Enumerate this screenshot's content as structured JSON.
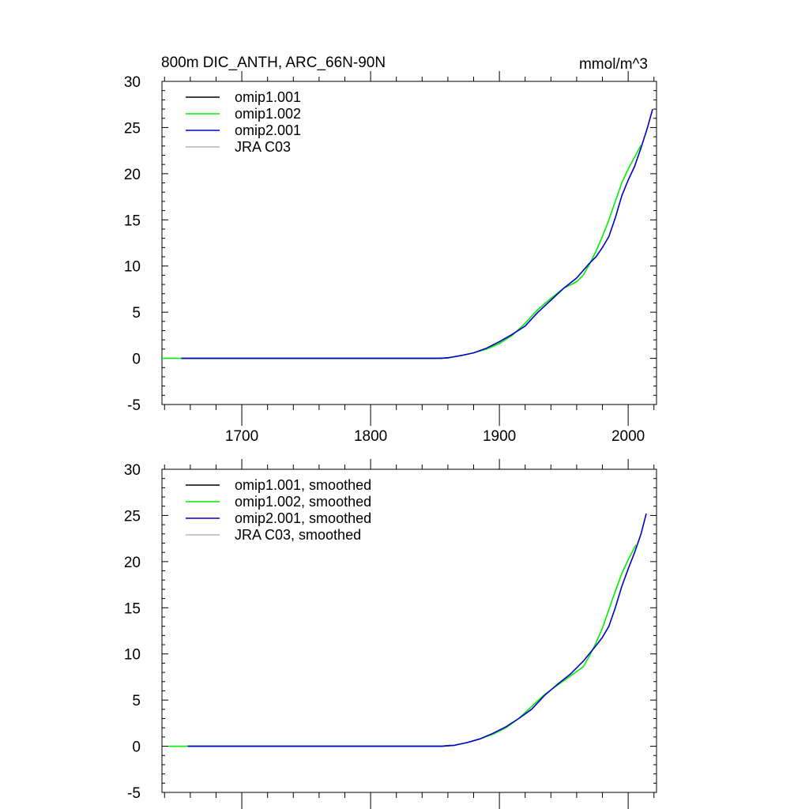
{
  "figure": {
    "title_left": "800m DIC_ANTH, ARC_66N-90N",
    "title_right": "mmol/m^3"
  },
  "colors": {
    "omip1_001": "#000000",
    "omip1_002": "#00ee00",
    "omip2_001": "#0000cc",
    "jra_c03": "#b4b4b4"
  },
  "chart_data": [
    {
      "type": "line",
      "xlim": [
        1638,
        2022
      ],
      "ylim": [
        -5,
        30
      ],
      "x_ticks": [
        1700,
        1800,
        1900,
        2000
      ],
      "x_tick_labels": [
        "1700",
        "1800",
        "1900",
        "2000"
      ],
      "y_ticks": [
        -5,
        0,
        5,
        10,
        15,
        20,
        25,
        30
      ],
      "y_tick_labels": [
        "-5",
        "0",
        "5",
        "10",
        "15",
        "20",
        "25",
        "30"
      ],
      "legend_placement": "top-left",
      "series": [
        {
          "name": "omip1.001",
          "color_key": "omip1_001",
          "points": [
            [
              1653,
              0
            ],
            [
              1855,
              0
            ],
            [
              1862,
              0.1
            ]
          ]
        },
        {
          "name": "omip1.002",
          "color_key": "omip1_002",
          "points": [
            [
              1638,
              0
            ],
            [
              1700,
              0
            ],
            [
              1800,
              0
            ],
            [
              1850,
              0
            ],
            [
              1860,
              0.05
            ],
            [
              1870,
              0.3
            ],
            [
              1880,
              0.6
            ],
            [
              1890,
              1.0
            ],
            [
              1900,
              1.6
            ],
            [
              1910,
              2.5
            ],
            [
              1920,
              3.8
            ],
            [
              1930,
              5.3
            ],
            [
              1940,
              6.5
            ],
            [
              1950,
              7.6
            ],
            [
              1960,
              8.3
            ],
            [
              1965,
              9.0
            ],
            [
              1970,
              10.2
            ],
            [
              1975,
              11.6
            ],
            [
              1980,
              13.2
            ],
            [
              1985,
              15.0
            ],
            [
              1990,
              17.0
            ],
            [
              1995,
              19.0
            ],
            [
              2000,
              20.5
            ],
            [
              2005,
              21.8
            ],
            [
              2010,
              23.1
            ]
          ]
        },
        {
          "name": "omip2.001",
          "color_key": "omip2_001",
          "points": [
            [
              1653,
              0
            ],
            [
              1700,
              0
            ],
            [
              1800,
              0
            ],
            [
              1850,
              0
            ],
            [
              1860,
              0.05
            ],
            [
              1870,
              0.3
            ],
            [
              1880,
              0.6
            ],
            [
              1890,
              1.1
            ],
            [
              1900,
              1.8
            ],
            [
              1910,
              2.6
            ],
            [
              1920,
              3.5
            ],
            [
              1930,
              5.0
            ],
            [
              1940,
              6.3
            ],
            [
              1950,
              7.6
            ],
            [
              1960,
              8.7
            ],
            [
              1970,
              10.3
            ],
            [
              1975,
              11.0
            ],
            [
              1980,
              12.0
            ],
            [
              1985,
              13.2
            ],
            [
              1990,
              15.2
            ],
            [
              1995,
              17.6
            ],
            [
              2000,
              19.3
            ],
            [
              2005,
              20.8
            ],
            [
              2010,
              22.8
            ],
            [
              2015,
              25.0
            ],
            [
              2019,
              27.0
            ]
          ]
        },
        {
          "name": "JRA C03",
          "color_key": "jra_c03",
          "points": []
        }
      ]
    },
    {
      "type": "line",
      "xlim": [
        1638,
        2022
      ],
      "ylim": [
        -5,
        30
      ],
      "x_ticks": [
        1700,
        1800,
        1900,
        2000
      ],
      "y_ticks": [
        -5,
        0,
        5,
        10,
        15,
        20,
        25,
        30
      ],
      "y_tick_labels": [
        "-5",
        "0",
        "5",
        "10",
        "15",
        "20",
        "25",
        "30"
      ],
      "legend_placement": "top-left",
      "series": [
        {
          "name": "omip1.001, smoothed",
          "color_key": "omip1_001",
          "points": [
            [
              1658,
              0
            ],
            [
              1855,
              0
            ],
            [
              1862,
              0.1
            ]
          ]
        },
        {
          "name": "omip1.002, smoothed",
          "color_key": "omip1_002",
          "points": [
            [
              1643,
              0
            ],
            [
              1700,
              0
            ],
            [
              1800,
              0
            ],
            [
              1855,
              0
            ],
            [
              1865,
              0.1
            ],
            [
              1875,
              0.4
            ],
            [
              1885,
              0.8
            ],
            [
              1895,
              1.3
            ],
            [
              1905,
              2.0
            ],
            [
              1915,
              3.0
            ],
            [
              1925,
              4.3
            ],
            [
              1935,
              5.6
            ],
            [
              1945,
              6.6
            ],
            [
              1955,
              7.6
            ],
            [
              1965,
              8.6
            ],
            [
              1970,
              9.8
            ],
            [
              1975,
              11.2
            ],
            [
              1980,
              12.8
            ],
            [
              1985,
              14.8
            ],
            [
              1990,
              16.8
            ],
            [
              1995,
              18.7
            ],
            [
              2000,
              20.2
            ],
            [
              2006,
              21.8
            ]
          ]
        },
        {
          "name": "omip2.001, smoothed",
          "color_key": "omip2_001",
          "points": [
            [
              1658,
              0
            ],
            [
              1700,
              0
            ],
            [
              1800,
              0
            ],
            [
              1855,
              0
            ],
            [
              1865,
              0.1
            ],
            [
              1875,
              0.4
            ],
            [
              1885,
              0.8
            ],
            [
              1895,
              1.4
            ],
            [
              1905,
              2.1
            ],
            [
              1915,
              3.0
            ],
            [
              1925,
              4.0
            ],
            [
              1935,
              5.5
            ],
            [
              1945,
              6.7
            ],
            [
              1955,
              7.8
            ],
            [
              1965,
              9.2
            ],
            [
              1975,
              10.9
            ],
            [
              1980,
              11.8
            ],
            [
              1985,
              13.0
            ],
            [
              1990,
              15.0
            ],
            [
              1995,
              17.3
            ],
            [
              2000,
              19.2
            ],
            [
              2005,
              21.0
            ],
            [
              2010,
              23.0
            ],
            [
              2014,
              25.2
            ]
          ]
        },
        {
          "name": "JRA C03, smoothed",
          "color_key": "jra_c03",
          "points": []
        }
      ]
    }
  ]
}
